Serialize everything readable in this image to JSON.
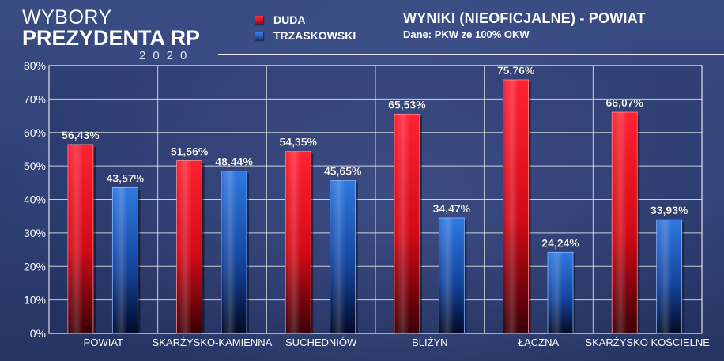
{
  "brand": {
    "line1": "WYBORY",
    "line2": "PREZYDENTA RP",
    "year": "2020"
  },
  "legend": [
    {
      "label": "DUDA",
      "color": "#e01020"
    },
    {
      "label": "TRZASKOWSKI",
      "color": "#1f5fbf"
    }
  ],
  "header": {
    "title": "WYNIKI (NIEOFICJALNE) - POWIAT",
    "source": "Dane: PKW ze 100% OKW"
  },
  "chart_data": {
    "type": "bar",
    "categories": [
      "POWIAT",
      "SKARŻYSKO-KAMIENNA",
      "SUCHEDNIÓW",
      "BLIŻYN",
      "ŁĄCZNA",
      "SKARŻYSKO KOŚCIELNE"
    ],
    "series": [
      {
        "name": "DUDA",
        "values": [
          56.43,
          51.56,
          54.35,
          65.53,
          75.76,
          66.07
        ],
        "labels": [
          "56,43%",
          "51,56%",
          "54,35%",
          "65,53%",
          "75,76%",
          "66,07%"
        ]
      },
      {
        "name": "TRZASKOWSKI",
        "values": [
          43.57,
          48.44,
          45.65,
          34.47,
          24.24,
          33.93
        ],
        "labels": [
          "43,57%",
          "48,44%",
          "45,65%",
          "34,47%",
          "24,24%",
          "33,93%"
        ]
      }
    ],
    "y_ticks": [
      "0%",
      "10%",
      "20%",
      "30%",
      "40%",
      "50%",
      "60%",
      "70%",
      "80%"
    ],
    "ylim": [
      0,
      80
    ],
    "grid": true,
    "colors": {
      "duda": "#e01020",
      "trzaskowski": "#1f5fbf"
    }
  }
}
